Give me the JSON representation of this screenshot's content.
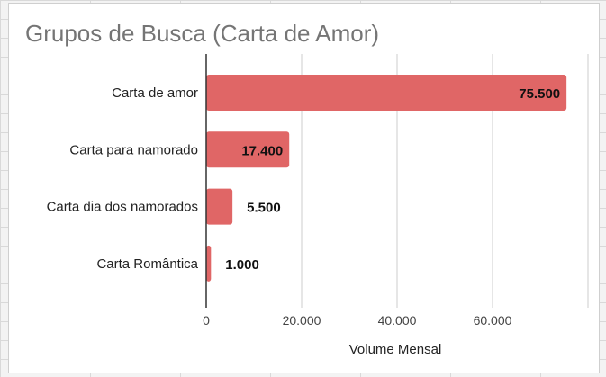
{
  "chart_data": {
    "type": "bar",
    "orientation": "horizontal",
    "title": "Grupos de Busca (Carta de Amor)",
    "categories": [
      "Carta de amor",
      "Carta para namorado",
      "Carta dia dos namorados",
      "Carta Romântica"
    ],
    "values": [
      75500,
      17400,
      5500,
      1000
    ],
    "value_labels": [
      "75.500",
      "17.400",
      "5.500",
      "1.000"
    ],
    "xlabel": "Volume Mensal",
    "ylabel": "",
    "xlim": [
      0,
      80000
    ],
    "xticks": [
      0,
      20000,
      40000,
      60000
    ],
    "xtick_labels": [
      "0",
      "20.000",
      "40.000",
      "60.000"
    ],
    "grid": true,
    "legend": "none",
    "bar_color": "#e06666"
  }
}
